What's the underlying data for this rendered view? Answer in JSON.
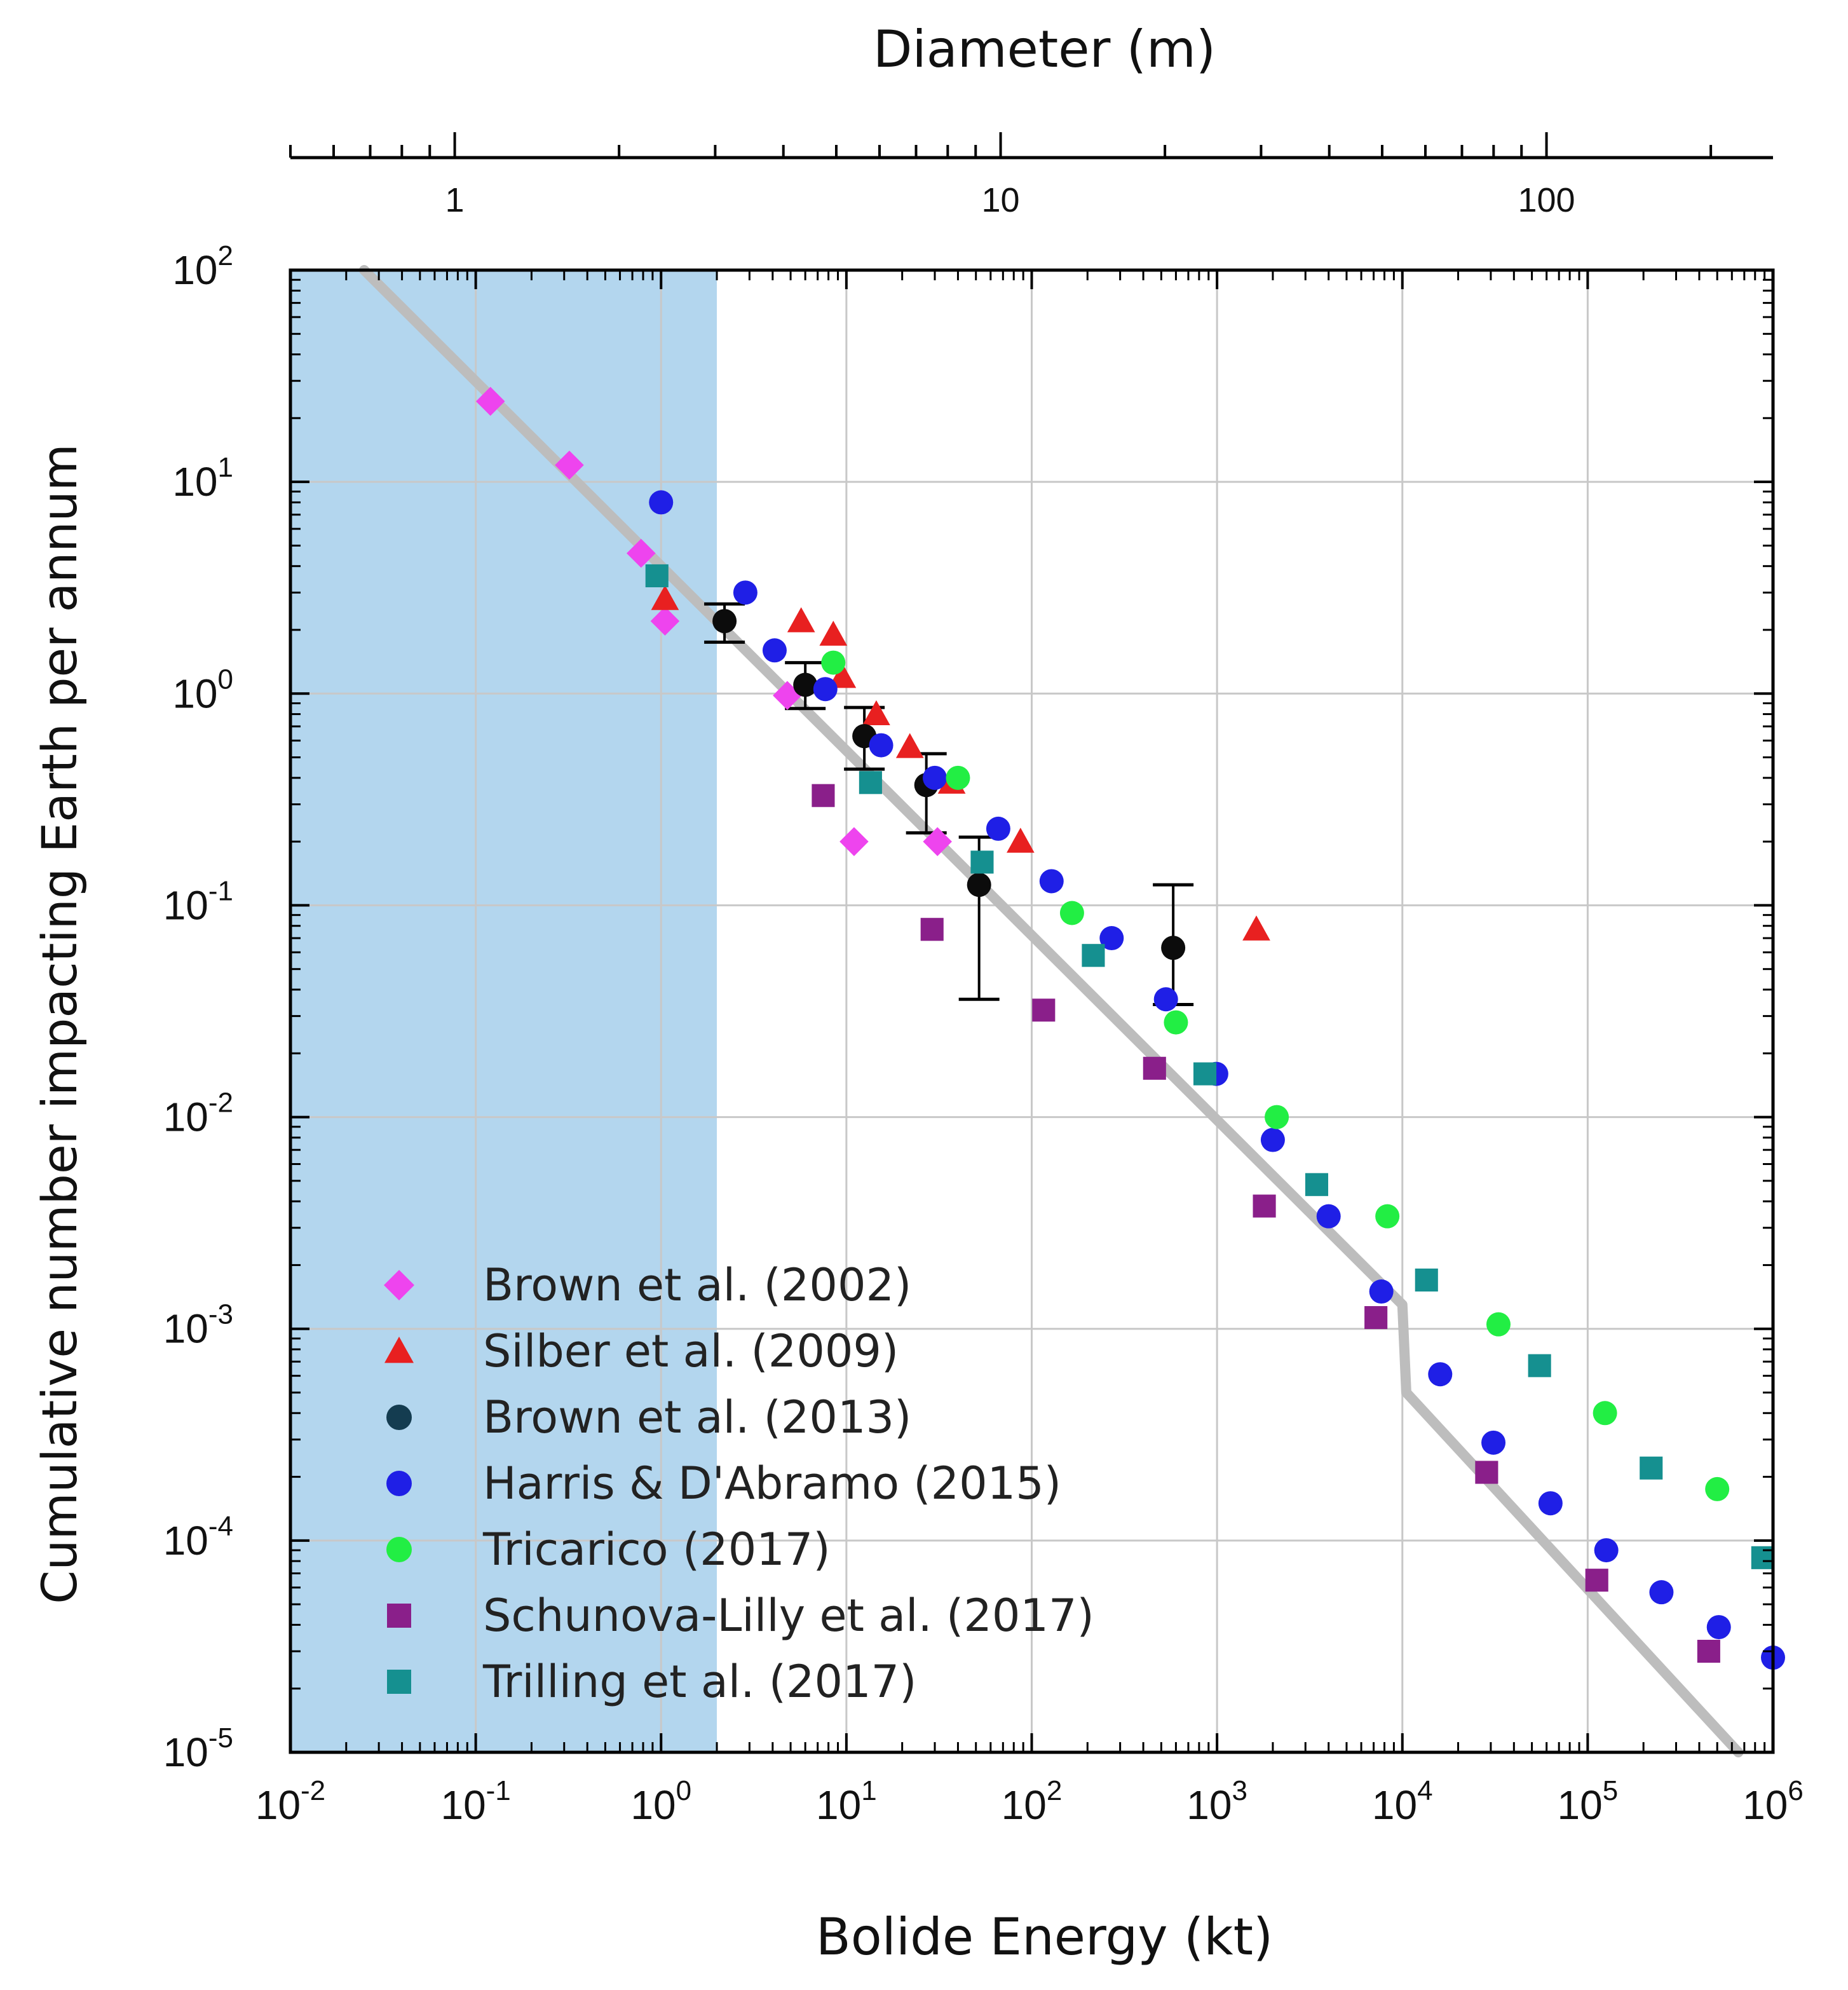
{
  "chart_data": {
    "type": "scatter",
    "title": "",
    "xlabel": "Bolide Energy (kt)",
    "ylabel": "Cumulative number impacting Earth per annum",
    "top_axis_label": "Diameter (m)",
    "xscale": "log",
    "yscale": "log",
    "xlim": [
      0.01,
      1000000
    ],
    "ylim": [
      1e-05,
      100
    ],
    "top_axis_range_m": [
      0.5,
      260
    ],
    "x_ticks": [
      {
        "base": "10",
        "exp": "-2"
      },
      {
        "base": "10",
        "exp": "-1"
      },
      {
        "base": "10",
        "exp": "0"
      },
      {
        "base": "10",
        "exp": "1"
      },
      {
        "base": "10",
        "exp": "2"
      },
      {
        "base": "10",
        "exp": "3"
      },
      {
        "base": "10",
        "exp": "4"
      },
      {
        "base": "10",
        "exp": "5"
      },
      {
        "base": "10",
        "exp": "6"
      }
    ],
    "y_ticks": [
      {
        "base": "10",
        "exp": "-5"
      },
      {
        "base": "10",
        "exp": "-4"
      },
      {
        "base": "10",
        "exp": "-3"
      },
      {
        "base": "10",
        "exp": "-2"
      },
      {
        "base": "10",
        "exp": "-1"
      },
      {
        "base": "10",
        "exp": "0"
      },
      {
        "base": "10",
        "exp": "1"
      },
      {
        "base": "10",
        "exp": "2"
      }
    ],
    "top_ticks": [
      {
        "label": "1",
        "value": 1
      },
      {
        "label": "10",
        "value": 10
      },
      {
        "label": "100",
        "value": 100
      }
    ],
    "shaded_region_x": [
      0.01,
      2
    ],
    "grid": true,
    "legend_position": "bottom-left",
    "model_curve": {
      "name": "power-law fit",
      "color": "#bdbdbd",
      "points": [
        [
          0.025,
          100
        ],
        [
          10000,
          0.0013
        ],
        [
          10500,
          0.0005
        ],
        [
          650000,
          1e-05
        ]
      ]
    },
    "series": [
      {
        "name": "Brown et al. (2002)",
        "marker": "diamond",
        "color": "#ee44ee",
        "points": [
          [
            0.12,
            24
          ],
          [
            0.32,
            12
          ],
          [
            0.78,
            4.6
          ],
          [
            1.05,
            2.2
          ],
          [
            4.8,
            0.98
          ],
          [
            11,
            0.2
          ],
          [
            31,
            0.2
          ]
        ]
      },
      {
        "name": "Silber et al. (2009)",
        "marker": "triangle",
        "color": "#e82020",
        "points": [
          [
            1.05,
            2.8
          ],
          [
            5.7,
            2.2
          ],
          [
            8.5,
            1.9
          ],
          [
            9.5,
            1.2
          ],
          [
            14.5,
            0.8
          ],
          [
            22,
            0.56
          ],
          [
            37,
            0.38
          ],
          [
            87,
            0.2
          ],
          [
            1630,
            0.077
          ]
        ]
      },
      {
        "name": "Brown et al. (2013)",
        "marker": "circle",
        "color": "#0c0c0c",
        "errorbars": true,
        "points": [
          [
            2.2,
            2.2
          ],
          [
            6,
            1.1
          ],
          [
            12.5,
            0.63
          ],
          [
            27,
            0.37
          ],
          [
            52,
            0.125
          ],
          [
            580,
            0.063
          ]
        ],
        "errors": [
          [
            1.75,
            2.65
          ],
          [
            0.85,
            1.4
          ],
          [
            0.44,
            0.86
          ],
          [
            0.22,
            0.52
          ],
          [
            0.036,
            0.21
          ],
          [
            0.034,
            0.125
          ]
        ]
      },
      {
        "name": "Harris & D'Abramo (2015)",
        "marker": "circle",
        "color": "#1f1fe6",
        "points": [
          [
            1,
            8
          ],
          [
            2.85,
            3
          ],
          [
            4.1,
            1.6
          ],
          [
            7.7,
            1.05
          ],
          [
            15.4,
            0.57
          ],
          [
            30,
            0.4
          ],
          [
            66,
            0.23
          ],
          [
            128,
            0.13
          ],
          [
            270,
            0.07
          ],
          [
            530,
            0.036
          ],
          [
            990,
            0.016
          ],
          [
            2000,
            0.0078
          ],
          [
            4000,
            0.0034
          ],
          [
            7700,
            0.0015
          ],
          [
            16000,
            0.00061
          ],
          [
            31000,
            0.00029
          ],
          [
            63000,
            0.00015
          ],
          [
            126000,
            9e-05
          ],
          [
            250000,
            5.7e-05
          ],
          [
            510000,
            3.9e-05
          ],
          [
            1000000,
            2.8e-05
          ]
        ]
      },
      {
        "name": "Tricarico (2017)",
        "marker": "circle",
        "color": "#22ee44",
        "points": [
          [
            8.5,
            1.4
          ],
          [
            40,
            0.4
          ],
          [
            165,
            0.092
          ],
          [
            600,
            0.028
          ],
          [
            2100,
            0.01
          ],
          [
            8300,
            0.0034
          ],
          [
            33000,
            0.00105
          ],
          [
            124000,
            0.0004
          ],
          [
            500000,
            0.000175
          ]
        ]
      },
      {
        "name": "Schunova-Lilly et al. (2017)",
        "marker": "square",
        "color": "#8a1f8a",
        "points": [
          [
            7.5,
            0.33
          ],
          [
            29,
            0.077
          ],
          [
            116,
            0.032
          ],
          [
            460,
            0.017
          ],
          [
            1800,
            0.0038
          ],
          [
            7200,
            0.00113
          ],
          [
            28500,
            0.00021
          ],
          [
            112000,
            6.5e-05
          ],
          [
            450000,
            3e-05
          ]
        ]
      },
      {
        "name": "Trilling et al. (2017)",
        "marker": "square",
        "color": "#159090",
        "points": [
          [
            0.95,
            3.6
          ],
          [
            13.5,
            0.38
          ],
          [
            54,
            0.16
          ],
          [
            215,
            0.058
          ],
          [
            860,
            0.016
          ],
          [
            3450,
            0.0048
          ],
          [
            13500,
            0.0017
          ],
          [
            55000,
            0.00067
          ],
          [
            220000,
            0.00022
          ],
          [
            880000,
            8.3e-05
          ]
        ]
      }
    ]
  }
}
